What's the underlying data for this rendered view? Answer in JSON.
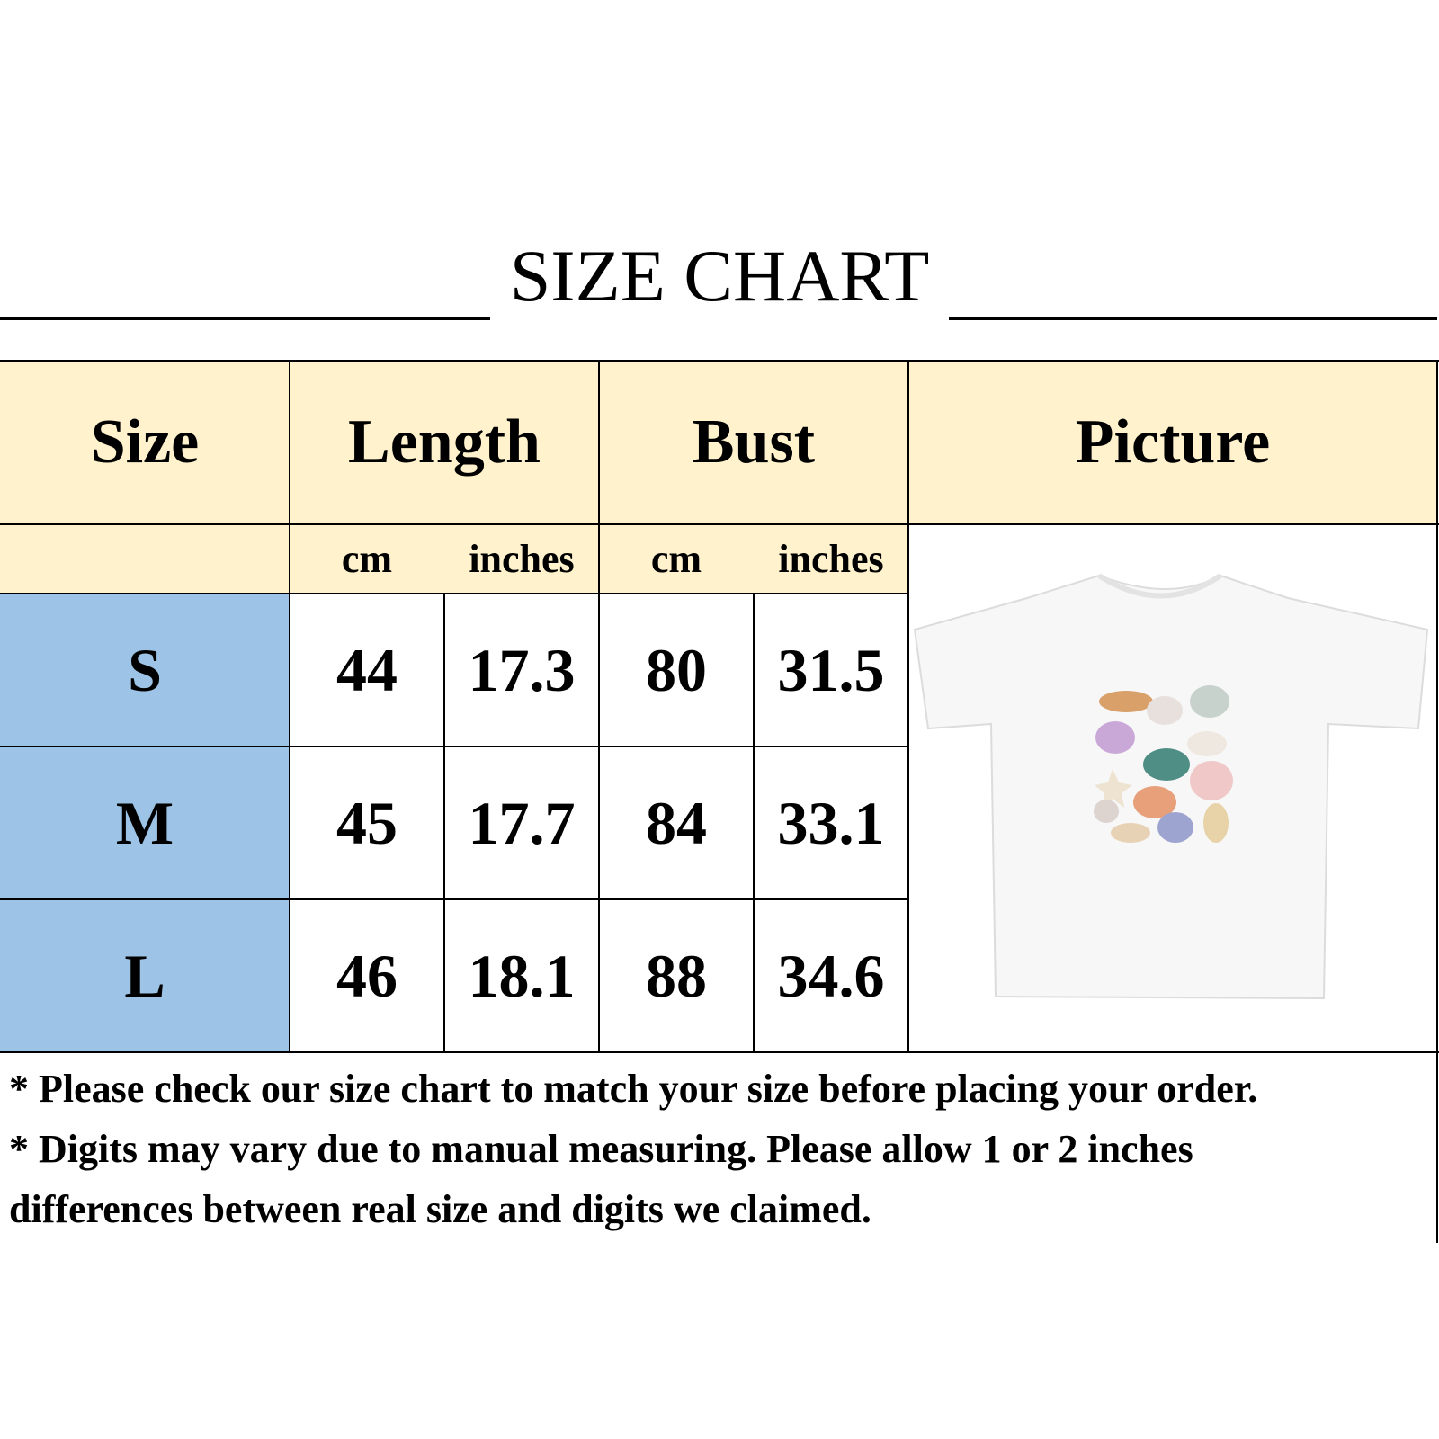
{
  "title": "SIZE CHART",
  "headers": {
    "size": "Size",
    "length": "Length",
    "bust": "Bust",
    "picture": "Picture"
  },
  "units": {
    "length_cm": "cm",
    "length_in": "inches",
    "bust_cm": "cm",
    "bust_in": "inches"
  },
  "rows": [
    {
      "size": "S",
      "length_cm": "44",
      "length_in": "17.3",
      "bust_cm": "80",
      "bust_in": "31.5"
    },
    {
      "size": "M",
      "length_cm": "45",
      "length_in": "17.7",
      "bust_cm": "84",
      "bust_in": "33.1"
    },
    {
      "size": "L",
      "length_cm": "46",
      "length_in": "18.1",
      "bust_cm": "88",
      "bust_in": "34.6"
    }
  ],
  "notes": [
    "* Please check our size chart to match your size before placing your order.",
    "* Digits may vary due to manual measuring. Please allow 1 or 2 inches",
    "differences between real size and digits we claimed."
  ],
  "picture": {
    "icon": "white-tshirt-with-seashell-print-image"
  },
  "colors": {
    "header_bg": "#fff2cc",
    "size_column_bg": "#9dc3e6",
    "border": "#000000"
  }
}
